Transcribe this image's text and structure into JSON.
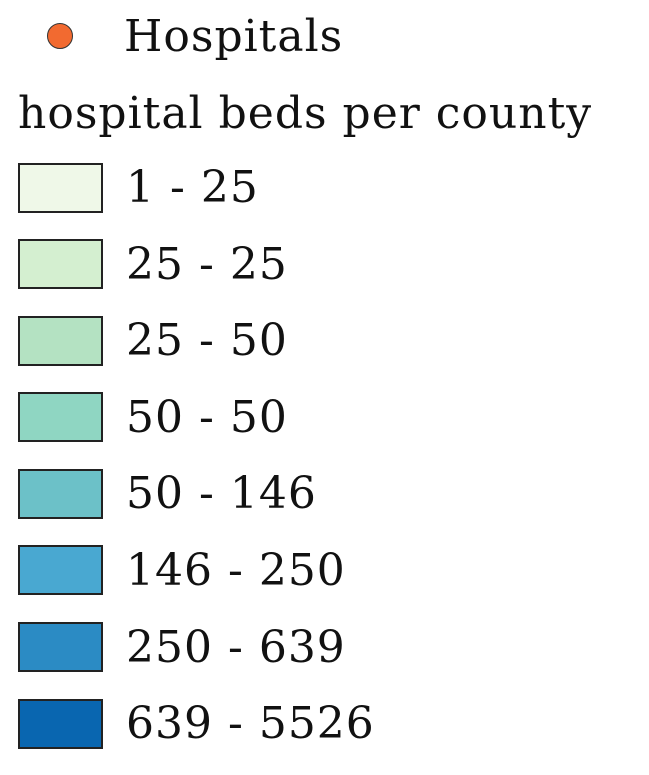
{
  "legend": {
    "point_layer": {
      "label": "Hospitals",
      "symbol": "circle-marker-icon",
      "color": "#f26a30"
    },
    "choropleth": {
      "title": "hospital beds per county",
      "classes": [
        {
          "label": "1 - 25",
          "color": "#eff8e8"
        },
        {
          "label": "25 - 25",
          "color": "#d4efd0"
        },
        {
          "label": "25 - 50",
          "color": "#b4e2c2"
        },
        {
          "label": "50 - 50",
          "color": "#8fd6c2"
        },
        {
          "label": "50 - 146",
          "color": "#6cc1c8"
        },
        {
          "label": "146 - 250",
          "color": "#49a8d1"
        },
        {
          "label": "250 - 639",
          "color": "#2b8bc4"
        },
        {
          "label": "639 - 5526",
          "color": "#0966b0"
        }
      ]
    }
  }
}
